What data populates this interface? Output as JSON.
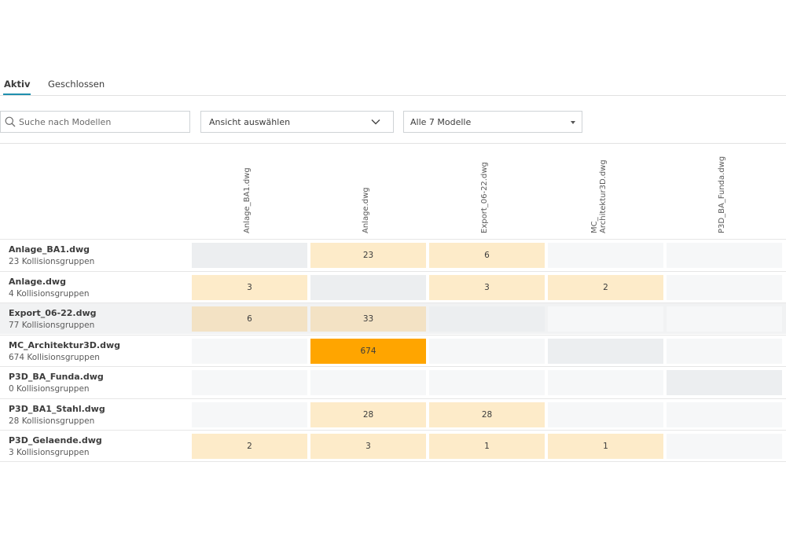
{
  "tabs": [
    {
      "label": "Aktiv",
      "active": true
    },
    {
      "label": "Geschlossen",
      "active": false
    }
  ],
  "search": {
    "placeholder": "Suche nach Modellen",
    "value": ""
  },
  "view_select": {
    "label": "Ansicht auswählen"
  },
  "model_select": {
    "label": "Alle 7 Modelle"
  },
  "colors": {
    "cell_empty": "#f6f7f8",
    "cell_self": "#eceef0",
    "cell_low": "#fdebc9",
    "cell_low_hl": "#f3e2c4",
    "cell_high": "#ffa500",
    "tab_accent": "#1f8fae"
  },
  "columns": [
    "Anlage_BA1.dwg",
    "Anlage.dwg",
    "Export_06-22.dwg",
    "MC_\nArchitektur3D.dwg",
    "P3D_BA_Funda.dwg"
  ],
  "rows": [
    {
      "name": "Anlage_BA1.dwg",
      "sub": "23 Kollisionsgruppen",
      "highlight": false,
      "cells": [
        "self",
        "23",
        "6",
        "",
        ""
      ]
    },
    {
      "name": "Anlage.dwg",
      "sub": "4 Kollisionsgruppen",
      "highlight": false,
      "cells": [
        "3",
        "self",
        "3",
        "2",
        ""
      ]
    },
    {
      "name": "Export_06-22.dwg",
      "sub": "77 Kollisionsgruppen",
      "highlight": true,
      "cells": [
        "6",
        "33",
        "self",
        "",
        ""
      ]
    },
    {
      "name": "MC_Architektur3D.dwg",
      "sub": "674 Kollisionsgruppen",
      "highlight": false,
      "cells": [
        "",
        "674",
        "",
        "self",
        ""
      ]
    },
    {
      "name": "P3D_BA_Funda.dwg",
      "sub": "0 Kollisionsgruppen",
      "highlight": false,
      "cells": [
        "",
        "",
        "",
        "",
        "self"
      ]
    },
    {
      "name": "P3D_BA1_Stahl.dwg",
      "sub": "28 Kollisionsgruppen",
      "highlight": false,
      "cells": [
        "",
        "28",
        "28",
        "",
        ""
      ]
    },
    {
      "name": "P3D_Gelaende.dwg",
      "sub": "3 Kollisionsgruppen",
      "highlight": false,
      "cells": [
        "2",
        "3",
        "1",
        "1",
        ""
      ]
    }
  ]
}
